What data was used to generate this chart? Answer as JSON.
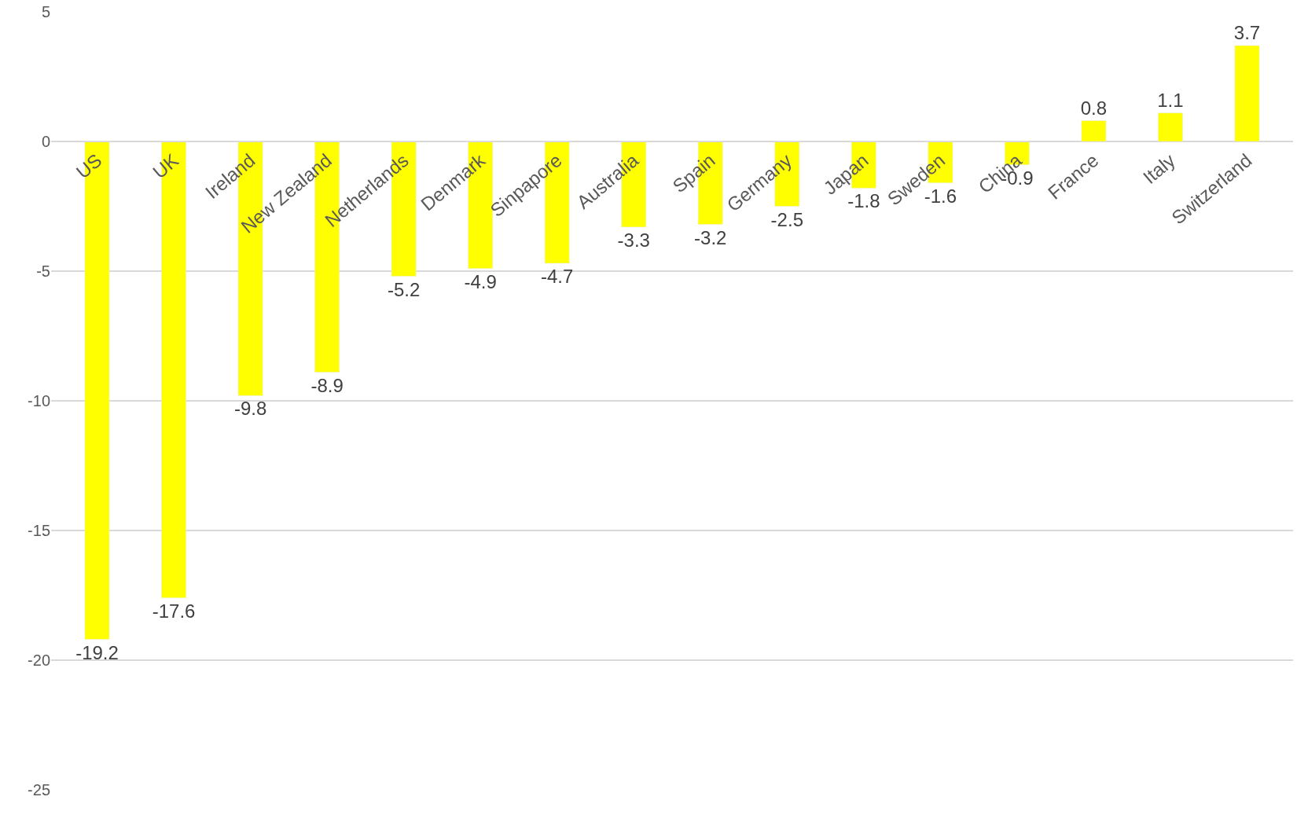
{
  "chart_data": {
    "type": "bar",
    "categories": [
      "US",
      "UK",
      "Ireland",
      "New Zealand",
      "Netherlands",
      "Denmark",
      "Sinpapore",
      "Australia",
      "Spain",
      "Germany",
      "Japan",
      "Sweden",
      "China",
      "France",
      "Italy",
      "Switzerland"
    ],
    "values": [
      -19.2,
      -17.6,
      -9.8,
      -8.9,
      -5.2,
      -4.9,
      -4.7,
      -3.3,
      -3.2,
      -2.5,
      -1.8,
      -1.6,
      -0.9,
      0.8,
      1.1,
      3.7
    ],
    "color": "#ffff00",
    "ylim": [
      -25,
      5
    ],
    "yticks": [
      -25,
      -20,
      -15,
      -10,
      -5,
      0,
      5
    ],
    "grid": "y",
    "data_labels": true,
    "legend": false
  }
}
